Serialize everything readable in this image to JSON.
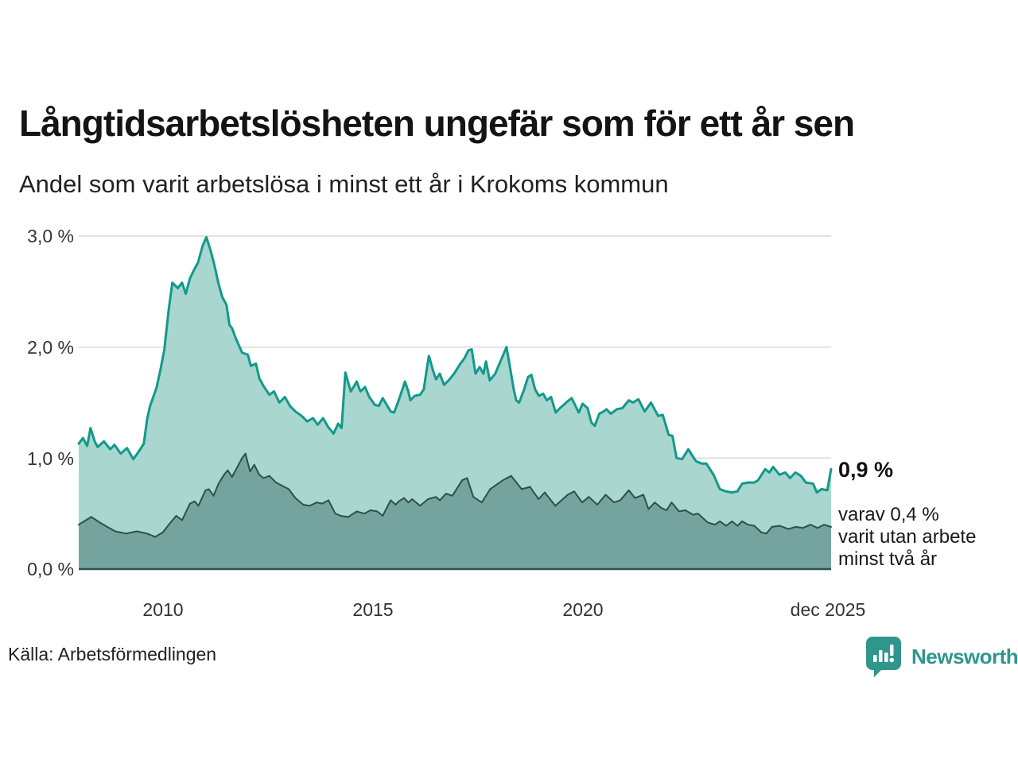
{
  "chart_data": {
    "type": "area",
    "title": "Långtidsarbetslösheten ungefär som för ett år sen",
    "subtitle": "Andel som varit arbetslösa i minst ett år i Krokoms kommun",
    "unit": "%",
    "grid": true,
    "legend_position": "none",
    "x_axis": {
      "range": [
        2008,
        2025.92
      ],
      "ticks": [
        {
          "t": 2010,
          "label": "2010"
        },
        {
          "t": 2015,
          "label": "2015"
        },
        {
          "t": 2020,
          "label": "2020"
        },
        {
          "t": 2025.92,
          "label": "dec 2025"
        }
      ]
    },
    "y_axis": {
      "range": [
        0,
        3
      ],
      "ticks": [
        {
          "v": 3,
          "label": "3,0 %"
        },
        {
          "v": 2,
          "label": "2,0 %"
        },
        {
          "v": 1,
          "label": "1,0 %"
        },
        {
          "v": 0,
          "label": "0,0 %"
        }
      ]
    },
    "series": [
      {
        "name": "Andel som varit arbetslösa i minst ett år",
        "line_color": "#12998a",
        "fill_color": "#a9d6cf",
        "points": [
          [
            2008.0,
            1.13
          ],
          [
            2008.1,
            1.18
          ],
          [
            2008.2,
            1.11
          ],
          [
            2008.28,
            1.27
          ],
          [
            2008.38,
            1.15
          ],
          [
            2008.45,
            1.1
          ],
          [
            2008.6,
            1.15
          ],
          [
            2008.75,
            1.08
          ],
          [
            2008.85,
            1.12
          ],
          [
            2009.0,
            1.04
          ],
          [
            2009.15,
            1.09
          ],
          [
            2009.3,
            0.99
          ],
          [
            2009.45,
            1.07
          ],
          [
            2009.55,
            1.13
          ],
          [
            2009.63,
            1.35
          ],
          [
            2009.7,
            1.47
          ],
          [
            2009.85,
            1.63
          ],
          [
            2009.95,
            1.8
          ],
          [
            2010.04,
            1.98
          ],
          [
            2010.14,
            2.33
          ],
          [
            2010.23,
            2.58
          ],
          [
            2010.36,
            2.53
          ],
          [
            2010.46,
            2.58
          ],
          [
            2010.55,
            2.48
          ],
          [
            2010.65,
            2.62
          ],
          [
            2010.74,
            2.69
          ],
          [
            2010.84,
            2.76
          ],
          [
            2010.95,
            2.91
          ],
          [
            2011.04,
            2.99
          ],
          [
            2011.14,
            2.87
          ],
          [
            2011.23,
            2.74
          ],
          [
            2011.33,
            2.57
          ],
          [
            2011.42,
            2.45
          ],
          [
            2011.52,
            2.38
          ],
          [
            2011.59,
            2.2
          ],
          [
            2011.65,
            2.17
          ],
          [
            2011.74,
            2.08
          ],
          [
            2011.89,
            1.95
          ],
          [
            2012.03,
            1.93
          ],
          [
            2012.1,
            1.83
          ],
          [
            2012.22,
            1.85
          ],
          [
            2012.3,
            1.72
          ],
          [
            2012.4,
            1.65
          ],
          [
            2012.54,
            1.57
          ],
          [
            2012.65,
            1.6
          ],
          [
            2012.78,
            1.5
          ],
          [
            2012.91,
            1.55
          ],
          [
            2013.03,
            1.47
          ],
          [
            2013.16,
            1.42
          ],
          [
            2013.31,
            1.38
          ],
          [
            2013.44,
            1.33
          ],
          [
            2013.58,
            1.36
          ],
          [
            2013.69,
            1.3
          ],
          [
            2013.82,
            1.36
          ],
          [
            2013.94,
            1.28
          ],
          [
            2014.07,
            1.22
          ],
          [
            2014.18,
            1.31
          ],
          [
            2014.26,
            1.27
          ],
          [
            2014.35,
            1.77
          ],
          [
            2014.48,
            1.6
          ],
          [
            2014.56,
            1.65
          ],
          [
            2014.62,
            1.69
          ],
          [
            2014.71,
            1.6
          ],
          [
            2014.82,
            1.64
          ],
          [
            2014.92,
            1.55
          ],
          [
            2015.05,
            1.48
          ],
          [
            2015.15,
            1.47
          ],
          [
            2015.24,
            1.54
          ],
          [
            2015.35,
            1.47
          ],
          [
            2015.43,
            1.42
          ],
          [
            2015.51,
            1.41
          ],
          [
            2015.62,
            1.52
          ],
          [
            2015.71,
            1.62
          ],
          [
            2015.77,
            1.69
          ],
          [
            2015.85,
            1.6
          ],
          [
            2015.9,
            1.52
          ],
          [
            2016.0,
            1.56
          ],
          [
            2016.13,
            1.57
          ],
          [
            2016.22,
            1.62
          ],
          [
            2016.3,
            1.83
          ],
          [
            2016.34,
            1.92
          ],
          [
            2016.43,
            1.8
          ],
          [
            2016.51,
            1.71
          ],
          [
            2016.6,
            1.76
          ],
          [
            2016.7,
            1.66
          ],
          [
            2016.81,
            1.7
          ],
          [
            2016.94,
            1.76
          ],
          [
            2017.09,
            1.85
          ],
          [
            2017.19,
            1.9
          ],
          [
            2017.28,
            1.97
          ],
          [
            2017.36,
            1.98
          ],
          [
            2017.45,
            1.76
          ],
          [
            2017.55,
            1.82
          ],
          [
            2017.64,
            1.76
          ],
          [
            2017.7,
            1.87
          ],
          [
            2017.79,
            1.7
          ],
          [
            2017.92,
            1.76
          ],
          [
            2018.02,
            1.85
          ],
          [
            2018.11,
            1.93
          ],
          [
            2018.19,
            2.0
          ],
          [
            2018.27,
            1.82
          ],
          [
            2018.36,
            1.62
          ],
          [
            2018.42,
            1.52
          ],
          [
            2018.49,
            1.5
          ],
          [
            2018.61,
            1.62
          ],
          [
            2018.7,
            1.73
          ],
          [
            2018.78,
            1.75
          ],
          [
            2018.87,
            1.62
          ],
          [
            2018.96,
            1.56
          ],
          [
            2019.06,
            1.58
          ],
          [
            2019.15,
            1.52
          ],
          [
            2019.25,
            1.55
          ],
          [
            2019.36,
            1.41
          ],
          [
            2019.49,
            1.46
          ],
          [
            2019.64,
            1.51
          ],
          [
            2019.74,
            1.54
          ],
          [
            2019.91,
            1.41
          ],
          [
            2020.0,
            1.49
          ],
          [
            2020.12,
            1.45
          ],
          [
            2020.21,
            1.32
          ],
          [
            2020.29,
            1.29
          ],
          [
            2020.4,
            1.4
          ],
          [
            2020.5,
            1.42
          ],
          [
            2020.57,
            1.44
          ],
          [
            2020.67,
            1.4
          ],
          [
            2020.82,
            1.44
          ],
          [
            2020.95,
            1.45
          ],
          [
            2021.1,
            1.52
          ],
          [
            2021.2,
            1.5
          ],
          [
            2021.33,
            1.53
          ],
          [
            2021.48,
            1.42
          ],
          [
            2021.63,
            1.5
          ],
          [
            2021.8,
            1.38
          ],
          [
            2021.91,
            1.39
          ],
          [
            2022.05,
            1.21
          ],
          [
            2022.14,
            1.2
          ],
          [
            2022.24,
            1.0
          ],
          [
            2022.37,
            0.99
          ],
          [
            2022.52,
            1.08
          ],
          [
            2022.65,
            1.0
          ],
          [
            2022.71,
            0.97
          ],
          [
            2022.84,
            0.95
          ],
          [
            2022.95,
            0.95
          ],
          [
            2023.12,
            0.85
          ],
          [
            2023.27,
            0.72
          ],
          [
            2023.41,
            0.7
          ],
          [
            2023.56,
            0.69
          ],
          [
            2023.69,
            0.7
          ],
          [
            2023.8,
            0.77
          ],
          [
            2023.94,
            0.78
          ],
          [
            2024.09,
            0.78
          ],
          [
            2024.18,
            0.8
          ],
          [
            2024.35,
            0.9
          ],
          [
            2024.45,
            0.87
          ],
          [
            2024.54,
            0.92
          ],
          [
            2024.69,
            0.85
          ],
          [
            2024.83,
            0.87
          ],
          [
            2024.94,
            0.82
          ],
          [
            2025.07,
            0.87
          ],
          [
            2025.2,
            0.84
          ],
          [
            2025.32,
            0.78
          ],
          [
            2025.49,
            0.77
          ],
          [
            2025.58,
            0.69
          ],
          [
            2025.69,
            0.72
          ],
          [
            2025.83,
            0.71
          ],
          [
            2025.92,
            0.9
          ]
        ]
      },
      {
        "name": "varav varit utan arbete minst två år",
        "line_color": "#2f4f4b",
        "fill_color": "#74a49d",
        "points": [
          [
            2008.0,
            0.4
          ],
          [
            2008.3,
            0.47
          ],
          [
            2008.5,
            0.42
          ],
          [
            2008.68,
            0.38
          ],
          [
            2008.87,
            0.34
          ],
          [
            2009.13,
            0.32
          ],
          [
            2009.38,
            0.34
          ],
          [
            2009.63,
            0.32
          ],
          [
            2009.82,
            0.29
          ],
          [
            2010.0,
            0.33
          ],
          [
            2010.19,
            0.42
          ],
          [
            2010.32,
            0.48
          ],
          [
            2010.46,
            0.44
          ],
          [
            2010.65,
            0.59
          ],
          [
            2010.76,
            0.61
          ],
          [
            2010.85,
            0.57
          ],
          [
            2011.02,
            0.71
          ],
          [
            2011.1,
            0.72
          ],
          [
            2011.21,
            0.66
          ],
          [
            2011.33,
            0.77
          ],
          [
            2011.46,
            0.85
          ],
          [
            2011.55,
            0.89
          ],
          [
            2011.65,
            0.83
          ],
          [
            2011.78,
            0.92
          ],
          [
            2011.89,
            1.0
          ],
          [
            2011.97,
            1.04
          ],
          [
            2012.08,
            0.88
          ],
          [
            2012.18,
            0.94
          ],
          [
            2012.3,
            0.85
          ],
          [
            2012.4,
            0.82
          ],
          [
            2012.54,
            0.84
          ],
          [
            2012.7,
            0.78
          ],
          [
            2012.85,
            0.75
          ],
          [
            2013.0,
            0.72
          ],
          [
            2013.16,
            0.64
          ],
          [
            2013.35,
            0.58
          ],
          [
            2013.5,
            0.57
          ],
          [
            2013.67,
            0.6
          ],
          [
            2013.8,
            0.59
          ],
          [
            2013.95,
            0.62
          ],
          [
            2014.11,
            0.5
          ],
          [
            2014.24,
            0.48
          ],
          [
            2014.42,
            0.47
          ],
          [
            2014.62,
            0.52
          ],
          [
            2014.8,
            0.5
          ],
          [
            2014.95,
            0.53
          ],
          [
            2015.11,
            0.52
          ],
          [
            2015.24,
            0.48
          ],
          [
            2015.43,
            0.62
          ],
          [
            2015.55,
            0.58
          ],
          [
            2015.62,
            0.61
          ],
          [
            2015.75,
            0.64
          ],
          [
            2015.85,
            0.6
          ],
          [
            2015.94,
            0.63
          ],
          [
            2016.13,
            0.57
          ],
          [
            2016.32,
            0.63
          ],
          [
            2016.51,
            0.65
          ],
          [
            2016.6,
            0.62
          ],
          [
            2016.75,
            0.68
          ],
          [
            2016.9,
            0.66
          ],
          [
            2017.13,
            0.8
          ],
          [
            2017.25,
            0.82
          ],
          [
            2017.4,
            0.65
          ],
          [
            2017.6,
            0.6
          ],
          [
            2017.8,
            0.72
          ],
          [
            2018.1,
            0.8
          ],
          [
            2018.3,
            0.84
          ],
          [
            2018.55,
            0.72
          ],
          [
            2018.75,
            0.74
          ],
          [
            2018.95,
            0.63
          ],
          [
            2019.1,
            0.69
          ],
          [
            2019.35,
            0.57
          ],
          [
            2019.65,
            0.67
          ],
          [
            2019.8,
            0.7
          ],
          [
            2019.99,
            0.6
          ],
          [
            2020.15,
            0.65
          ],
          [
            2020.35,
            0.58
          ],
          [
            2020.55,
            0.67
          ],
          [
            2020.75,
            0.6
          ],
          [
            2020.9,
            0.62
          ],
          [
            2021.1,
            0.71
          ],
          [
            2021.25,
            0.64
          ],
          [
            2021.45,
            0.67
          ],
          [
            2021.57,
            0.54
          ],
          [
            2021.72,
            0.6
          ],
          [
            2021.88,
            0.55
          ],
          [
            2022.0,
            0.53
          ],
          [
            2022.12,
            0.6
          ],
          [
            2022.3,
            0.52
          ],
          [
            2022.45,
            0.53
          ],
          [
            2022.63,
            0.49
          ],
          [
            2022.75,
            0.5
          ],
          [
            2022.98,
            0.42
          ],
          [
            2023.15,
            0.4
          ],
          [
            2023.27,
            0.43
          ],
          [
            2023.42,
            0.39
          ],
          [
            2023.56,
            0.43
          ],
          [
            2023.69,
            0.39
          ],
          [
            2023.8,
            0.43
          ],
          [
            2023.94,
            0.4
          ],
          [
            2024.09,
            0.39
          ],
          [
            2024.26,
            0.33
          ],
          [
            2024.38,
            0.32
          ],
          [
            2024.51,
            0.38
          ],
          [
            2024.7,
            0.39
          ],
          [
            2024.9,
            0.36
          ],
          [
            2025.07,
            0.38
          ],
          [
            2025.25,
            0.37
          ],
          [
            2025.43,
            0.4
          ],
          [
            2025.6,
            0.37
          ],
          [
            2025.75,
            0.4
          ],
          [
            2025.92,
            0.38
          ]
        ]
      }
    ],
    "annotations": {
      "latest_value": "0,9 %",
      "sub_lines": [
        "varav 0,4 %",
        "varit utan arbete",
        "minst två år"
      ]
    }
  },
  "footer": {
    "source": "Källa: Arbetsförmedlingen",
    "brand": "Newsworthy"
  },
  "colors": {
    "grid": "#d9d9d9",
    "axis": "#2f4f4b",
    "text": "#333333",
    "title": "#141414",
    "brand_teal": "#2f968e",
    "series1_line": "#12998a",
    "series1_fill": "#a9d6cf",
    "series2_line": "#2f4f4b",
    "series2_fill": "#74a49d"
  }
}
